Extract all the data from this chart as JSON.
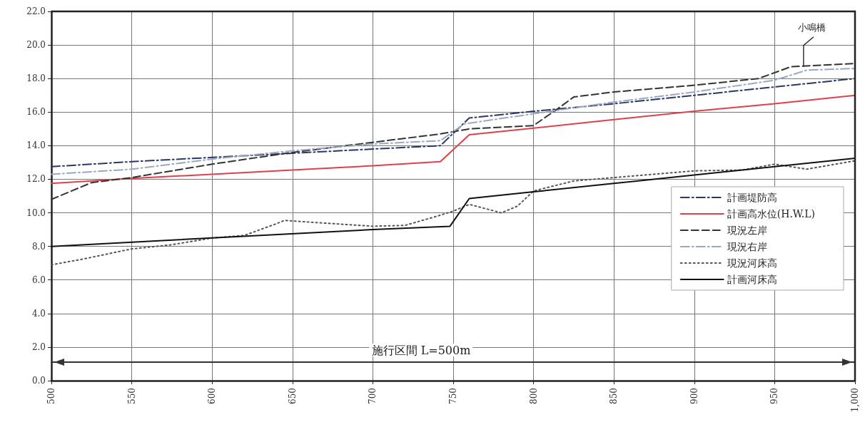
{
  "chart_data": {
    "type": "line",
    "x": [
      500,
      550,
      600,
      650,
      700,
      742,
      760,
      800,
      850,
      900,
      950,
      1000
    ],
    "series": [
      {
        "name": "計画堤防高",
        "color": "#2b3766",
        "line_style": "dashdot",
        "values": [
          12.75,
          13.05,
          13.3,
          13.55,
          13.8,
          14.0,
          15.65,
          16.05,
          16.5,
          17.0,
          17.5,
          18.0
        ]
      },
      {
        "name": "計画高水位(H.W.L)",
        "color": "#e0404a",
        "line_style": "solid",
        "values": [
          11.75,
          12.05,
          12.3,
          12.55,
          12.8,
          13.05,
          14.65,
          15.05,
          15.55,
          16.05,
          16.5,
          17.0
        ]
      },
      {
        "name": "現況左岸",
        "color": "#333333",
        "line_style": "dashed",
        "x": [
          500,
          525,
          550,
          600,
          650,
          700,
          742,
          760,
          800,
          815,
          825,
          850,
          900,
          940,
          960,
          1000
        ],
        "values": [
          10.8,
          11.8,
          12.1,
          12.9,
          13.6,
          14.2,
          14.7,
          15.0,
          15.2,
          16.2,
          16.9,
          17.2,
          17.6,
          18.0,
          18.7,
          18.9
        ]
      },
      {
        "name": "現況右岸",
        "color": "#9aa8c4",
        "line_style": "dashdot",
        "x": [
          500,
          550,
          600,
          650,
          700,
          742,
          757,
          800,
          850,
          900,
          950,
          970,
          1000
        ],
        "values": [
          12.3,
          12.6,
          13.2,
          13.7,
          14.1,
          14.3,
          15.3,
          15.9,
          16.6,
          17.2,
          17.9,
          18.5,
          18.6
        ]
      },
      {
        "name": "現況河床高",
        "color": "#555555",
        "line_style": "dotted",
        "x": [
          500,
          520,
          550,
          575,
          600,
          620,
          640,
          645,
          660,
          700,
          720,
          740,
          750,
          760,
          780,
          790,
          800,
          825,
          900,
          930,
          950,
          970,
          1000
        ],
        "values": [
          6.9,
          7.25,
          7.85,
          8.1,
          8.5,
          8.65,
          9.35,
          9.55,
          9.45,
          9.2,
          9.25,
          9.8,
          10.1,
          10.5,
          10.0,
          10.4,
          11.3,
          11.9,
          12.5,
          12.55,
          12.9,
          12.6,
          13.1
        ]
      },
      {
        "name": "計画河床高",
        "color": "#111111",
        "line_style": "solid",
        "x": [
          500,
          600,
          700,
          748,
          760,
          800,
          850,
          900,
          950,
          1000
        ],
        "values": [
          8.0,
          8.5,
          9.0,
          9.2,
          10.85,
          11.25,
          11.75,
          12.25,
          12.75,
          13.25
        ]
      },
      {
        "color": "#333333",
        "line_style": "solid",
        "x": [
          500,
          1000
        ],
        "values": [
          1.1,
          1.1
        ]
      }
    ],
    "annotations": [
      {
        "text": "小鳴橋",
        "x": 968,
        "y": 18.7
      },
      "施行区間 L=500m"
    ],
    "xlim": [
      500,
      1000
    ],
    "xticks": [
      500,
      550,
      600,
      650,
      700,
      750,
      800,
      850,
      900,
      950,
      {
        "value": 1000,
        "label": "1,000"
      }
    ],
    "ylim": [
      0,
      22
    ],
    "yticks": [
      {
        "value": 0,
        "label": "0.0"
      },
      {
        "value": 2,
        "label": "2.0"
      },
      {
        "value": 4,
        "label": "4.0"
      },
      {
        "value": 6,
        "label": "6.0"
      },
      {
        "value": 8,
        "label": "8.0"
      },
      {
        "value": 10,
        "label": "10.0"
      },
      {
        "value": 12,
        "label": "12.0"
      },
      {
        "value": 14,
        "label": "14.0"
      },
      {
        "value": 16,
        "label": "16.0"
      },
      {
        "value": 18,
        "label": "18.0"
      },
      {
        "value": 20,
        "label": "20.0"
      },
      {
        "value": 22,
        "label": "22.0"
      }
    ],
    "grid": true,
    "legend": "right",
    "marker": "none"
  }
}
